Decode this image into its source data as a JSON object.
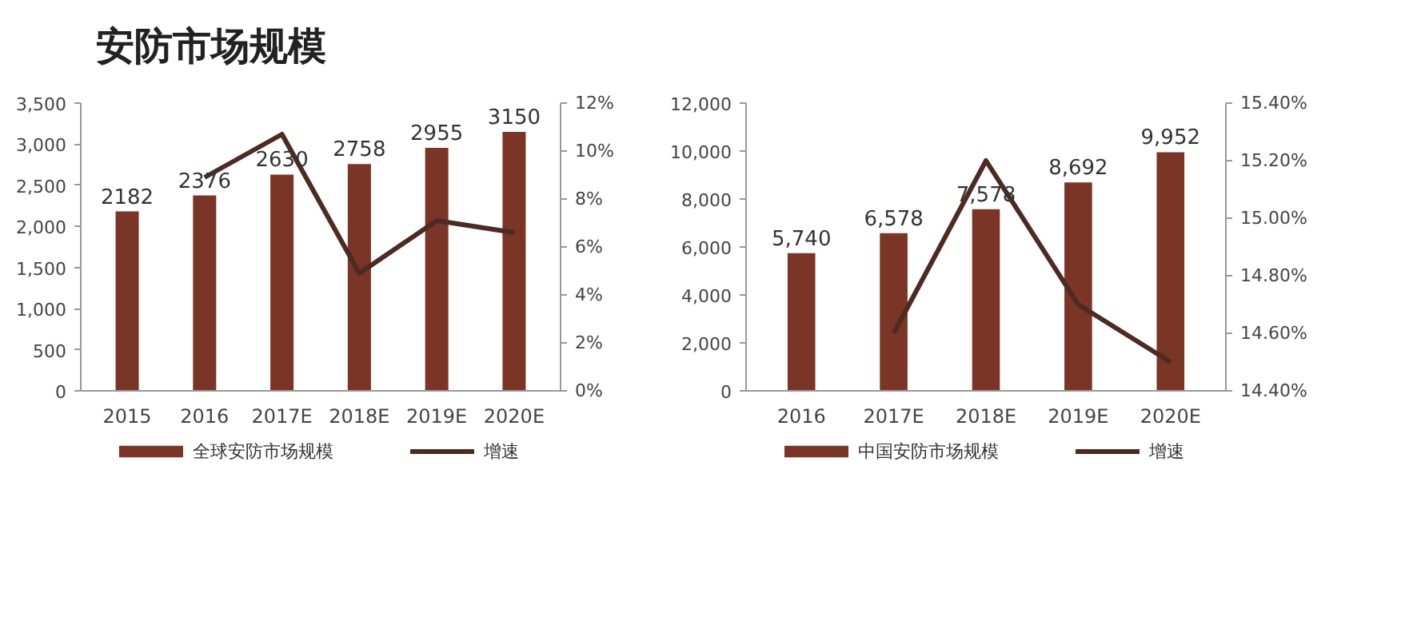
{
  "chart_data": [
    {
      "type": "bar",
      "title": "安防市场规模",
      "categories": [
        "2015",
        "2016",
        "2017E",
        "2018E",
        "2019E",
        "2020E"
      ],
      "series": [
        {
          "name": "全球安防市场规模",
          "color": "#7b3526",
          "values": [
            2182,
            2376,
            2630,
            2758,
            2955,
            3150
          ],
          "value_labels": [
            "2182",
            "2376",
            "2630",
            "2758",
            "2955",
            "3150"
          ]
        },
        {
          "name": "增速",
          "type": "line",
          "axis": "y2",
          "color": "#4d2a22",
          "values": [
            null,
            8.9,
            10.7,
            4.9,
            7.1,
            6.6
          ]
        }
      ],
      "ylim": [
        0,
        3500
      ],
      "yticks": [
        0,
        500,
        {
          "value": 1000,
          "label": "1,000"
        },
        {
          "value": 1500,
          "label": "1,500"
        },
        {
          "value": 2000,
          "label": "2,000"
        },
        {
          "value": 2500,
          "label": "2,500"
        },
        {
          "value": 3000,
          "label": "3,000"
        },
        {
          "value": 3500,
          "label": "3,500"
        }
      ],
      "y2lim": [
        0,
        12
      ],
      "y2ticks": [
        {
          "value": 0,
          "label": "0%"
        },
        {
          "value": 2,
          "label": "2%"
        },
        {
          "value": 4,
          "label": "4%"
        },
        {
          "value": 6,
          "label": "6%"
        },
        {
          "value": 8,
          "label": "8%"
        },
        {
          "value": 10,
          "label": "10%"
        },
        {
          "value": 12,
          "label": "12%"
        }
      ],
      "legend": "bottom",
      "grid": false
    },
    {
      "type": "bar",
      "categories": [
        "2016",
        "2017E",
        "2018E",
        "2019E",
        "2020E"
      ],
      "series": [
        {
          "name": "中国安防市场规模",
          "color": "#7b3526",
          "values": [
            5740,
            6578,
            7578,
            8692,
            9952
          ],
          "value_labels": [
            "5,740",
            "6,578",
            "7,578",
            "8,692",
            "9,952"
          ]
        },
        {
          "name": "增速",
          "type": "line",
          "axis": "y2",
          "color": "#4d2a22",
          "values": [
            null,
            14.6,
            15.2,
            14.7,
            14.5
          ]
        }
      ],
      "ylim": [
        0,
        12000
      ],
      "yticks": [
        0,
        {
          "value": 2000,
          "label": "2,000"
        },
        {
          "value": 4000,
          "label": "4,000"
        },
        {
          "value": 6000,
          "label": "6,000"
        },
        {
          "value": 8000,
          "label": "8,000"
        },
        {
          "value": 10000,
          "label": "10,000"
        },
        {
          "value": 12000,
          "label": "12,000"
        }
      ],
      "y2lim": [
        14.4,
        15.4
      ],
      "y2ticks": [
        {
          "value": 14.4,
          "label": "14.40%"
        },
        {
          "value": 14.6,
          "label": "14.60%"
        },
        {
          "value": 14.8,
          "label": "14.80%"
        },
        {
          "value": 15.0,
          "label": "15.00%"
        },
        {
          "value": 15.2,
          "label": "15.20%"
        },
        {
          "value": 15.4,
          "label": "15.40%"
        }
      ],
      "legend": "bottom",
      "grid": false
    }
  ]
}
